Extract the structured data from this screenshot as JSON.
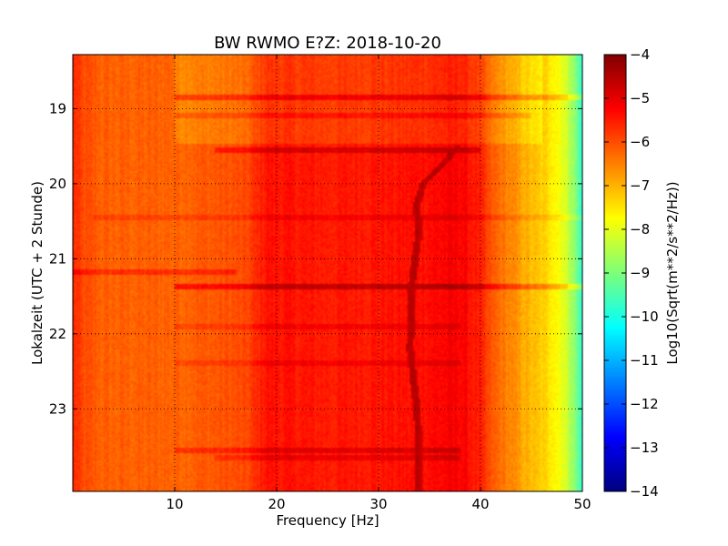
{
  "chart_data": {
    "type": "heatmap",
    "title": "BW RWMO E?Z: 2018-10-20",
    "xlabel": "Frequency [Hz]",
    "ylabel": "Lokalzeit (UTC + 2 Stunde)",
    "xlim": [
      0,
      50
    ],
    "ylim": [
      18.28,
      24.1
    ],
    "y_inverted": true,
    "x_ticks": [
      10,
      20,
      30,
      40,
      50
    ],
    "x_tick_labels": [
      "10",
      "20",
      "30",
      "40",
      "50"
    ],
    "y_ticks": [
      19,
      20,
      21,
      22,
      23
    ],
    "y_tick_labels": [
      "19",
      "20",
      "21",
      "22",
      "23"
    ],
    "grid": true,
    "grid_style": "dotted",
    "colormap": "jet",
    "colorbar": {
      "label": "Log10(Sqrt(m**2/s**2/Hz))",
      "range": [
        -14,
        -4
      ],
      "ticks": [
        -4,
        -5,
        -6,
        -7,
        -8,
        -9,
        -10,
        -11,
        -12,
        -13,
        -14
      ],
      "tick_labels": [
        "−4",
        "−5",
        "−6",
        "−7",
        "−8",
        "−9",
        "−10",
        "−11",
        "−12",
        "−13",
        "−14"
      ]
    },
    "frequency_profile_log10": [
      [
        0,
        -5.6
      ],
      [
        1,
        -6.0
      ],
      [
        3,
        -6.2
      ],
      [
        10,
        -6.2
      ],
      [
        14,
        -6.1
      ],
      [
        17,
        -6.0
      ],
      [
        19,
        -5.4
      ],
      [
        25,
        -5.5
      ],
      [
        33,
        -5.4
      ],
      [
        38,
        -5.2
      ],
      [
        40,
        -5.6
      ],
      [
        41,
        -6.1
      ],
      [
        43,
        -6.6
      ],
      [
        45,
        -7.1
      ],
      [
        47,
        -7.5
      ],
      [
        48,
        -7.9
      ],
      [
        49,
        -8.6
      ],
      [
        50,
        -9.8
      ]
    ],
    "early_period_offset": 0.35,
    "early_period_end_time": 19.48,
    "horizontal_bands": [
      {
        "time": 18.85,
        "delta": 0.7,
        "f_from": 10,
        "f_to": 50
      },
      {
        "time": 19.1,
        "delta": 0.4,
        "f_from": 10,
        "f_to": 45
      },
      {
        "time": 19.55,
        "delta": 0.6,
        "f_from": 14,
        "f_to": 40
      },
      {
        "time": 20.45,
        "delta": 0.3,
        "f_from": 2,
        "f_to": 50
      },
      {
        "time": 21.18,
        "delta": 0.5,
        "f_from": 0,
        "f_to": 16
      },
      {
        "time": 21.38,
        "delta": 0.8,
        "f_from": 10,
        "f_to": 50
      },
      {
        "time": 21.9,
        "delta": 0.3,
        "f_from": 10,
        "f_to": 38
      },
      {
        "time": 22.4,
        "delta": 0.3,
        "f_from": 10,
        "f_to": 38
      },
      {
        "time": 23.55,
        "delta": 0.5,
        "f_from": 10,
        "f_to": 38
      },
      {
        "time": 23.65,
        "delta": 0.4,
        "f_from": 14,
        "f_to": 38
      }
    ],
    "drifting_line": [
      {
        "time": 19.5,
        "freq": 37.8
      },
      {
        "time": 19.75,
        "freq": 36.3
      },
      {
        "time": 20.0,
        "freq": 34.4
      },
      {
        "time": 20.3,
        "freq": 33.7
      },
      {
        "time": 20.6,
        "freq": 34.0
      },
      {
        "time": 21.0,
        "freq": 33.6
      },
      {
        "time": 21.4,
        "freq": 33.2
      },
      {
        "time": 21.8,
        "freq": 33.2
      },
      {
        "time": 22.2,
        "freq": 33.1
      },
      {
        "time": 22.6,
        "freq": 33.4
      },
      {
        "time": 23.0,
        "freq": 33.8
      },
      {
        "time": 23.5,
        "freq": 33.9
      },
      {
        "time": 24.1,
        "freq": 33.9
      }
    ]
  }
}
